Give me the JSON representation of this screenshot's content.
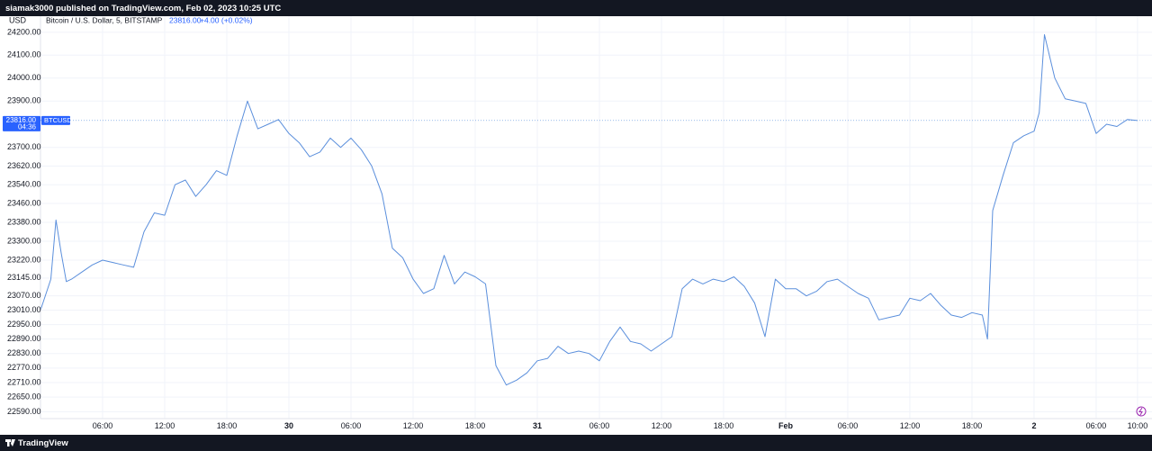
{
  "header": {
    "text": "siamak3000 published on TradingView.com, Feb 02, 2023 10:25 UTC"
  },
  "footer": {
    "brand": "TradingView"
  },
  "chart_data": {
    "type": "line",
    "currency": "USD",
    "symbol": "BTCUSD",
    "last_price": 23816,
    "last_price_label": "23816.00",
    "countdown": "04:36",
    "change": "+4.00 (+0.02%)",
    "log_scale": true,
    "grid": true,
    "series": [
      {
        "name": "Bitcoin / U.S. Dollar, 5, BITSTAMP",
        "color": "#5b8fdc",
        "x": [
          0,
          1,
          1.5,
          2,
          2.5,
          3,
          4,
          5,
          6,
          7,
          8,
          9,
          10,
          11,
          12,
          13,
          14,
          15,
          16,
          17,
          18,
          19,
          20,
          21,
          22,
          23,
          24,
          25,
          26,
          27,
          28,
          29,
          30,
          31,
          32,
          33,
          34,
          35,
          36,
          37,
          38,
          39,
          40,
          41,
          42,
          43,
          44,
          45,
          46,
          47,
          48,
          49,
          50,
          51,
          52,
          53,
          54,
          55,
          56,
          57,
          58,
          59,
          60,
          61,
          62,
          63,
          64,
          65,
          66,
          67,
          68,
          69,
          70,
          71,
          72,
          73,
          74,
          75,
          76,
          77,
          78,
          79,
          80,
          81,
          82,
          83,
          84,
          85,
          86,
          87,
          88,
          89,
          90,
          91,
          91.5,
          92,
          93,
          94,
          95,
          96,
          96.5,
          97,
          98,
          99,
          100,
          101,
          102,
          103,
          104,
          105,
          106
        ],
        "values": [
          23010,
          23140,
          23390,
          23250,
          23130,
          23140,
          23170,
          23200,
          23220,
          23210,
          23200,
          23190,
          23340,
          23420,
          23410,
          23540,
          23560,
          23490,
          23540,
          23600,
          23580,
          23750,
          23900,
          23780,
          23800,
          23820,
          23760,
          23720,
          23660,
          23680,
          23740,
          23700,
          23740,
          23690,
          23620,
          23500,
          23270,
          23230,
          23140,
          23080,
          23100,
          23240,
          23120,
          23170,
          23150,
          23120,
          22780,
          22700,
          22720,
          22750,
          22800,
          22810,
          22860,
          22830,
          22840,
          22830,
          22800,
          22880,
          22940,
          22880,
          22870,
          22840,
          22870,
          22900,
          23100,
          23140,
          23120,
          23140,
          23130,
          23150,
          23110,
          23040,
          22900,
          23140,
          23100,
          23100,
          23070,
          23090,
          23130,
          23140,
          23110,
          23080,
          23060,
          22970,
          22980,
          22990,
          23060,
          23050,
          23080,
          23030,
          22990,
          22980,
          23000,
          22990,
          22890,
          23430,
          23580,
          23720,
          23750,
          23770,
          23850,
          24190,
          24000,
          23910,
          23900,
          23890,
          23760,
          23800,
          23790,
          23820,
          23816
        ]
      }
    ],
    "xlim": [
      0,
      106.7
    ],
    "xticks": [
      {
        "value": 6,
        "label": "06:00"
      },
      {
        "value": 12,
        "label": "12:00"
      },
      {
        "value": 18,
        "label": "18:00"
      },
      {
        "value": 24,
        "label": "30"
      },
      {
        "value": 30,
        "label": "06:00"
      },
      {
        "value": 36,
        "label": "12:00"
      },
      {
        "value": 42,
        "label": "18:00"
      },
      {
        "value": 48,
        "label": "31"
      },
      {
        "value": 54,
        "label": "06:00"
      },
      {
        "value": 60,
        "label": "12:00"
      },
      {
        "value": 66,
        "label": "18:00"
      },
      {
        "value": 72,
        "label": "Feb"
      },
      {
        "value": 78,
        "label": "06:00"
      },
      {
        "value": 84,
        "label": "12:00"
      },
      {
        "value": 90,
        "label": "18:00"
      },
      {
        "value": 96,
        "label": "2"
      },
      {
        "value": 102,
        "label": "06:00"
      },
      {
        "value": 106,
        "label": "10:00"
      }
    ],
    "ylim": [
      22562,
      24271
    ],
    "yticks": [
      {
        "value": 24200,
        "label": "24200.00"
      },
      {
        "value": 24100,
        "label": "24100.00"
      },
      {
        "value": 24000,
        "label": "24000.00"
      },
      {
        "value": 23900,
        "label": "23900.00"
      },
      {
        "value": 23700,
        "label": "23700.00"
      },
      {
        "value": 23620,
        "label": "23620.00"
      },
      {
        "value": 23540,
        "label": "23540.00"
      },
      {
        "value": 23460,
        "label": "23460.00"
      },
      {
        "value": 23380,
        "label": "23380.00"
      },
      {
        "value": 23300,
        "label": "23300.00"
      },
      {
        "value": 23220,
        "label": "23220.00"
      },
      {
        "value": 23145,
        "label": "23145.00"
      },
      {
        "value": 23070,
        "label": "23070.00"
      },
      {
        "value": 23010,
        "label": "23010.00"
      },
      {
        "value": 22950,
        "label": "22950.00"
      },
      {
        "value": 22890,
        "label": "22890.00"
      },
      {
        "value": 22830,
        "label": "22830.00"
      },
      {
        "value": 22770,
        "label": "22770.00"
      },
      {
        "value": 22710,
        "label": "22710.00"
      },
      {
        "value": 22650,
        "label": "22650.00"
      },
      {
        "value": 22590,
        "label": "22590.00"
      }
    ]
  }
}
